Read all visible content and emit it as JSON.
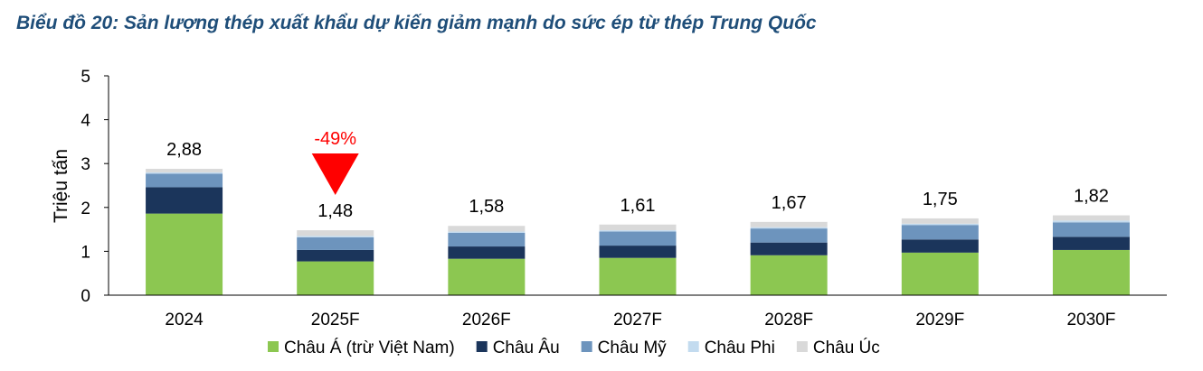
{
  "chart_data": {
    "type": "bar",
    "stacked": true,
    "title": "Biểu đồ 20: Sản lượng thép xuất khẩu dự kiến giảm mạnh do sức ép từ thép Trung Quốc",
    "xlabel": "",
    "ylabel": "Triệu tấn",
    "ylim": [
      0,
      5
    ],
    "yticks": [
      "0",
      "1",
      "2",
      "3",
      "4",
      "5"
    ],
    "grid": false,
    "legend_position": "bottom",
    "categories": [
      "2024",
      "2025F",
      "2026F",
      "2027F",
      "2028F",
      "2029F",
      "2030F"
    ],
    "totals": [
      "2,88",
      "1,48",
      "1,58",
      "1,61",
      "1,67",
      "1,75",
      "1,82"
    ],
    "series": [
      {
        "name": "Châu Á (trừ Việt Nam)",
        "color": "#8cc751",
        "values": [
          1.86,
          0.77,
          0.83,
          0.85,
          0.91,
          0.97,
          1.03
        ]
      },
      {
        "name": "Châu Âu",
        "color": "#1b355b",
        "values": [
          0.6,
          0.26,
          0.28,
          0.28,
          0.29,
          0.3,
          0.3
        ]
      },
      {
        "name": "Châu Mỹ",
        "color": "#6d94bd",
        "values": [
          0.31,
          0.29,
          0.31,
          0.32,
          0.32,
          0.33,
          0.33
        ]
      },
      {
        "name": "Châu Phi",
        "color": "#c3dbef",
        "values": [
          0.03,
          0.03,
          0.03,
          0.03,
          0.03,
          0.03,
          0.04
        ]
      },
      {
        "name": "Châu Úc",
        "color": "#d9d9d9",
        "values": [
          0.08,
          0.13,
          0.13,
          0.13,
          0.12,
          0.12,
          0.12
        ]
      }
    ],
    "annotations": [
      {
        "category": "2025F",
        "label": "-49%",
        "marker": "down-triangle",
        "color": "#ff0000"
      }
    ]
  }
}
